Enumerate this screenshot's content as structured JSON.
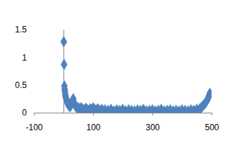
{
  "chart_data": {
    "type": "scatter",
    "marker": "diamond",
    "color": "#4f81bd",
    "xlim": [
      -100,
      500
    ],
    "xticks": [
      -100,
      100,
      300,
      500
    ],
    "ylim": [
      0,
      1.5
    ],
    "yticks": [
      0,
      0.5,
      1,
      1.5
    ],
    "x": [
      1,
      2,
      3,
      4,
      5,
      6,
      7,
      8,
      10,
      12,
      14,
      16,
      18,
      20,
      23,
      26,
      30,
      33,
      36,
      40,
      44,
      48,
      52,
      56,
      60,
      65,
      70,
      75,
      80,
      85,
      90,
      95,
      100,
      105,
      110,
      115,
      120,
      125,
      130,
      140,
      150,
      160,
      170,
      180,
      190,
      200,
      210,
      220,
      230,
      240,
      250,
      260,
      270,
      280,
      290,
      300,
      310,
      320,
      330,
      340,
      350,
      360,
      370,
      380,
      390,
      400,
      410,
      420,
      430,
      440,
      450,
      460,
      465,
      470,
      475,
      480,
      484,
      488,
      491,
      494
    ],
    "values": [
      1.28,
      0.87,
      0.48,
      0.42,
      0.38,
      0.33,
      0.3,
      0.27,
      0.24,
      0.2,
      0.17,
      0.15,
      0.13,
      0.12,
      0.11,
      0.15,
      0.22,
      0.25,
      0.18,
      0.12,
      0.1,
      0.09,
      0.08,
      0.07,
      0.09,
      0.06,
      0.05,
      0.08,
      0.06,
      0.04,
      0.07,
      0.05,
      0.09,
      0.06,
      0.04,
      0.07,
      0.05,
      0.03,
      0.06,
      0.05,
      0.04,
      0.06,
      0.03,
      0.05,
      0.04,
      0.06,
      0.03,
      0.05,
      0.04,
      0.03,
      0.05,
      0.04,
      0.06,
      0.03,
      0.04,
      0.05,
      0.03,
      0.04,
      0.06,
      0.03,
      0.04,
      0.05,
      0.03,
      0.04,
      0.03,
      0.05,
      0.04,
      0.03,
      0.05,
      0.04,
      0.06,
      0.07,
      0.09,
      0.12,
      0.15,
      0.18,
      0.22,
      0.26,
      0.3,
      0.35
    ]
  }
}
